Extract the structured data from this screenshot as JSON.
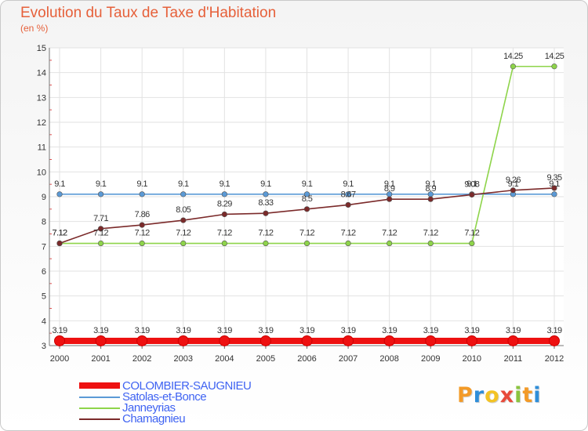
{
  "title": "Evolution du Taux de Taxe d'Habitation",
  "subtitle": "(en %)",
  "logo": {
    "text": "Proxiti",
    "colors": [
      "#f39a27",
      "#2f8ed9",
      "#f3c324",
      "#e84a3a",
      "#8bc43f",
      "#f39a27",
      "#2f8ed9"
    ]
  },
  "chart_data": {
    "type": "line",
    "x": [
      "2000",
      "2001",
      "2002",
      "2003",
      "2004",
      "2005",
      "2006",
      "2007",
      "2008",
      "2009",
      "2010",
      "2011",
      "2012"
    ],
    "ylim": [
      3,
      15
    ],
    "yticks": [
      "3",
      "4",
      "5",
      "6",
      "7",
      "8",
      "9",
      "10",
      "11",
      "12",
      "13",
      "14",
      "15"
    ],
    "grid": true,
    "legend_position": "bottom-left",
    "series": [
      {
        "name": "COLOMBIER-SAUGNIEU",
        "color": "#ee1111",
        "values": [
          3.19,
          3.19,
          3.19,
          3.19,
          3.19,
          3.19,
          3.19,
          3.19,
          3.19,
          3.19,
          3.19,
          3.19,
          3.19
        ],
        "labels": [
          "3.19",
          "3.19",
          "3.19",
          "3.19",
          "3.19",
          "3.19",
          "3.19",
          "3.19",
          "3.19",
          "3.19",
          "3.19",
          "3.19",
          "3.19"
        ]
      },
      {
        "name": "Satolas-et-Bonce",
        "color": "#5b9ad6",
        "values": [
          9.1,
          9.1,
          9.1,
          9.1,
          9.1,
          9.1,
          9.1,
          9.1,
          9.1,
          9.1,
          9.1,
          9.1,
          9.1
        ],
        "labels": [
          "9.1",
          "9.1",
          "9.1",
          "9.1",
          "9.1",
          "9.1",
          "9.1",
          "9.1",
          "9.1",
          "9.1",
          "9.1",
          "9.1",
          "9.1"
        ]
      },
      {
        "name": "Janneyrias",
        "color": "#8ed44a",
        "values": [
          7.12,
          7.12,
          7.12,
          7.12,
          7.12,
          7.12,
          7.12,
          7.12,
          7.12,
          7.12,
          7.12,
          14.25,
          14.25
        ],
        "labels": [
          "7.12",
          "7.12",
          "7.12",
          "7.12",
          "7.12",
          "7.12",
          "7.12",
          "7.12",
          "7.12",
          "7.12",
          "7.12",
          "14.25",
          "14.25"
        ]
      },
      {
        "name": "Chamagnieu",
        "color": "#7b2a2a",
        "values": [
          7.12,
          7.71,
          7.86,
          8.05,
          8.29,
          8.33,
          8.5,
          8.67,
          8.9,
          8.9,
          9.08,
          9.26,
          9.35
        ],
        "labels": [
          "7.12",
          "7.71",
          "7.86",
          "8.05",
          "8.29",
          "8.33",
          "8.5",
          "8.67",
          "8.9",
          "8.9",
          "9.08",
          "9.26",
          "9.35"
        ]
      }
    ]
  }
}
